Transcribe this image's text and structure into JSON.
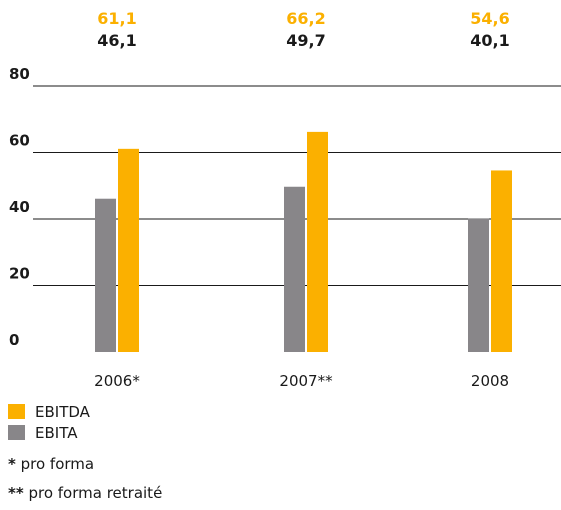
{
  "chart_data": {
    "type": "bar",
    "categories": [
      "2006*",
      "2007**",
      "2008"
    ],
    "series": [
      {
        "name": "EBITA",
        "values": [
          46.1,
          49.7,
          40.1
        ],
        "color": "#888689"
      },
      {
        "name": "EBITDA",
        "values": [
          61.1,
          66.2,
          54.6
        ],
        "color": "#FBB000"
      }
    ],
    "top_labels": {
      "EBITDA": [
        "61,1",
        "66,2",
        "54,6"
      ],
      "EBITA": [
        "46,1",
        "49,7",
        "40,1"
      ]
    },
    "yticks": [
      0,
      20,
      40,
      60,
      80
    ],
    "ylim": [
      0,
      80
    ],
    "grid": true,
    "legend_position": "bottom-left",
    "title": "",
    "xlabel": "",
    "ylabel": ""
  },
  "legend": [
    {
      "label": "EBITDA",
      "color": "#FBB000"
    },
    {
      "label": "EBITA",
      "color": "#888689"
    }
  ],
  "notes": {
    "note1_marker": "*",
    "note1_text": " pro forma",
    "note2_marker": "**",
    "note2_text": " pro forma retraité"
  },
  "colors": {
    "text": "#1a1a1a",
    "orange": "#FBB000",
    "gray": "#888689"
  }
}
